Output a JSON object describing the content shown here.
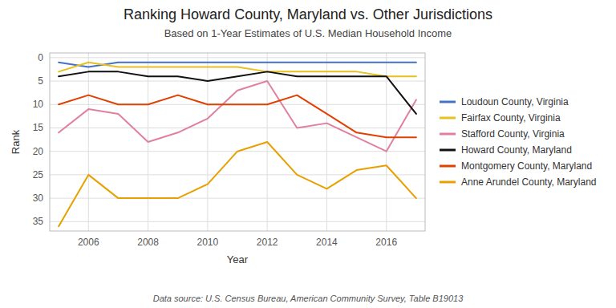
{
  "chart_data": {
    "type": "line",
    "title": "Ranking Howard County, Maryland vs. Other Jurisdictions",
    "subtitle": "Based on 1-Year Estimates of U.S. Median Household Income",
    "x_label": "Year",
    "y_label": "Rank",
    "footnote": "Data source: U.S. Census Bureau, American Community Survey, Table B19013",
    "x": [
      2005,
      2006,
      2007,
      2008,
      2009,
      2010,
      2011,
      2012,
      2013,
      2014,
      2015,
      2016,
      2017
    ],
    "series": [
      {
        "name": "Loudoun County, Virginia",
        "color": "#4472C4",
        "values": [
          1,
          2,
          1,
          1,
          1,
          1,
          1,
          1,
          1,
          1,
          1,
          1,
          1
        ]
      },
      {
        "name": "Fairfax County, Virginia",
        "color": "#E8C020",
        "values": [
          3,
          1,
          2,
          2,
          2,
          2,
          2,
          3,
          3,
          3,
          3,
          4,
          4
        ]
      },
      {
        "name": "Stafford County, Virginia",
        "color": "#E080A0",
        "values": [
          16,
          11,
          12,
          18,
          16,
          13,
          7,
          5,
          15,
          14,
          17,
          20,
          9
        ]
      },
      {
        "name": "Howard County, Maryland",
        "color": "#111111",
        "values": [
          4,
          3,
          3,
          4,
          4,
          5,
          4,
          3,
          4,
          4,
          4,
          4,
          12
        ]
      },
      {
        "name": "Montgomery County, Maryland",
        "color": "#E04000",
        "values": [
          10,
          8,
          10,
          10,
          8,
          10,
          10,
          10,
          8,
          12,
          16,
          17,
          17
        ]
      },
      {
        "name": "Anne Arundel County, Maryland",
        "color": "#E8A000",
        "values": [
          36,
          25,
          30,
          30,
          30,
          27,
          20,
          18,
          25,
          28,
          24,
          23,
          30
        ]
      }
    ],
    "xlim": [
      2004.7,
      2017.3
    ],
    "xticks": [
      2006,
      2008,
      2010,
      2012,
      2014,
      2016
    ],
    "ylim": [
      37,
      -1
    ],
    "yticks": [
      0,
      5,
      10,
      15,
      20,
      25,
      30,
      35
    ],
    "grid": true,
    "legend": "right"
  }
}
